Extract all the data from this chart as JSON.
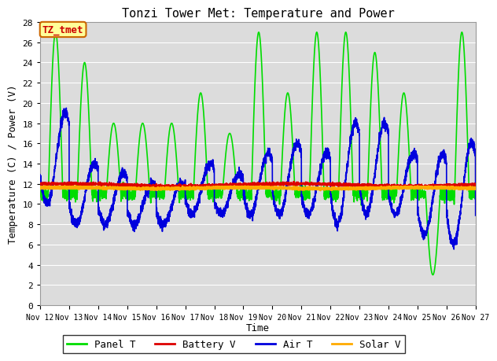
{
  "title": "Tonzi Tower Met: Temperature and Power",
  "ylabel": "Temperature (C) / Power (V)",
  "xlabel": "Time",
  "annotation": "TZ_tmet",
  "annotation_color": "#cc0000",
  "annotation_bg": "#ffff99",
  "annotation_border": "#cc6600",
  "bg_color": "#dcdcdc",
  "ylim": [
    0,
    28
  ],
  "yticks": [
    0,
    2,
    4,
    6,
    8,
    10,
    12,
    14,
    16,
    18,
    20,
    22,
    24,
    26,
    28
  ],
  "n_days": 15,
  "xtick_labels": [
    "Nov 12",
    "Nov 13",
    "Nov 14",
    "Nov 15",
    "Nov 16",
    "Nov 17",
    "Nov 18",
    "Nov 19",
    "Nov 20",
    "Nov 21",
    "Nov 22",
    "Nov 23",
    "Nov 24",
    "Nov 25",
    "Nov 26",
    "Nov 27"
  ],
  "series": {
    "Panel_T": {
      "color": "#00dd00",
      "label": "Panel T",
      "linewidth": 1.2,
      "zorder": 3
    },
    "Battery_V": {
      "color": "#dd0000",
      "label": "Battery V",
      "linewidth": 1.2,
      "zorder": 4
    },
    "Air_T": {
      "color": "#0000dd",
      "label": "Air T",
      "linewidth": 1.2,
      "zorder": 3
    },
    "Solar_V": {
      "color": "#ffaa00",
      "label": "Solar V",
      "linewidth": 2.0,
      "zorder": 5
    }
  },
  "title_fontsize": 11,
  "axis_fontsize": 9,
  "tick_fontsize": 8,
  "legend_fontsize": 9
}
